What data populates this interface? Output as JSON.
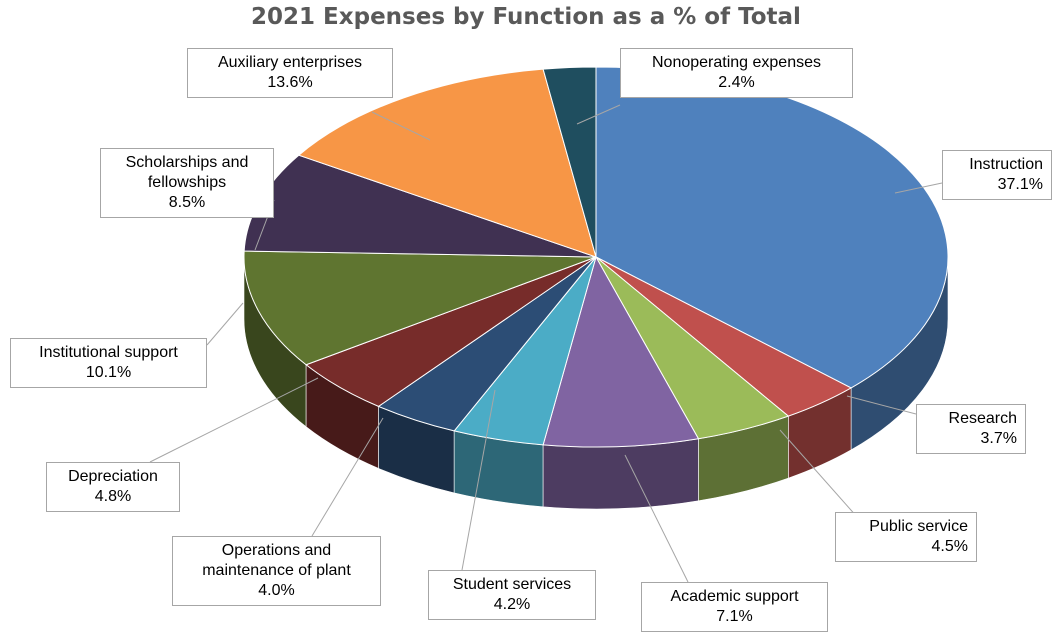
{
  "chart_data": {
    "type": "pie",
    "title": "2021 Expenses by Function as a % of Total",
    "slices": [
      {
        "label": "Instruction",
        "value": 37.1,
        "value_label": "37.1%",
        "color": "#4F81BD"
      },
      {
        "label": "Research",
        "value": 3.7,
        "value_label": "3.7%",
        "color": "#C0504D"
      },
      {
        "label": "Public service",
        "value": 4.5,
        "value_label": "4.5%",
        "color": "#9BBB59"
      },
      {
        "label": "Academic support",
        "value": 7.1,
        "value_label": "7.1%",
        "color": "#8064A2"
      },
      {
        "label": "Student services",
        "value": 4.2,
        "value_label": "4.2%",
        "color": "#4BACC6"
      },
      {
        "label": "Operations and maintenance of plant",
        "value": 4.0,
        "value_label": "4.0%",
        "color": "#2C4D75"
      },
      {
        "label": "Depreciation",
        "value": 4.8,
        "value_label": "4.8%",
        "color": "#772C2A"
      },
      {
        "label": "Institutional support",
        "value": 10.1,
        "value_label": "10.1%",
        "color": "#5F7530"
      },
      {
        "label": "Scholarships and fellowships",
        "value": 8.5,
        "value_label": "8.5%",
        "color": "#403152"
      },
      {
        "label": "Auxiliary enterprises",
        "value": 13.6,
        "value_label": "13.6%",
        "color": "#F79646"
      },
      {
        "label": "Nonoperating expenses",
        "value": 2.4,
        "value_label": "2.4%",
        "color": "#1F4E5F"
      }
    ]
  }
}
